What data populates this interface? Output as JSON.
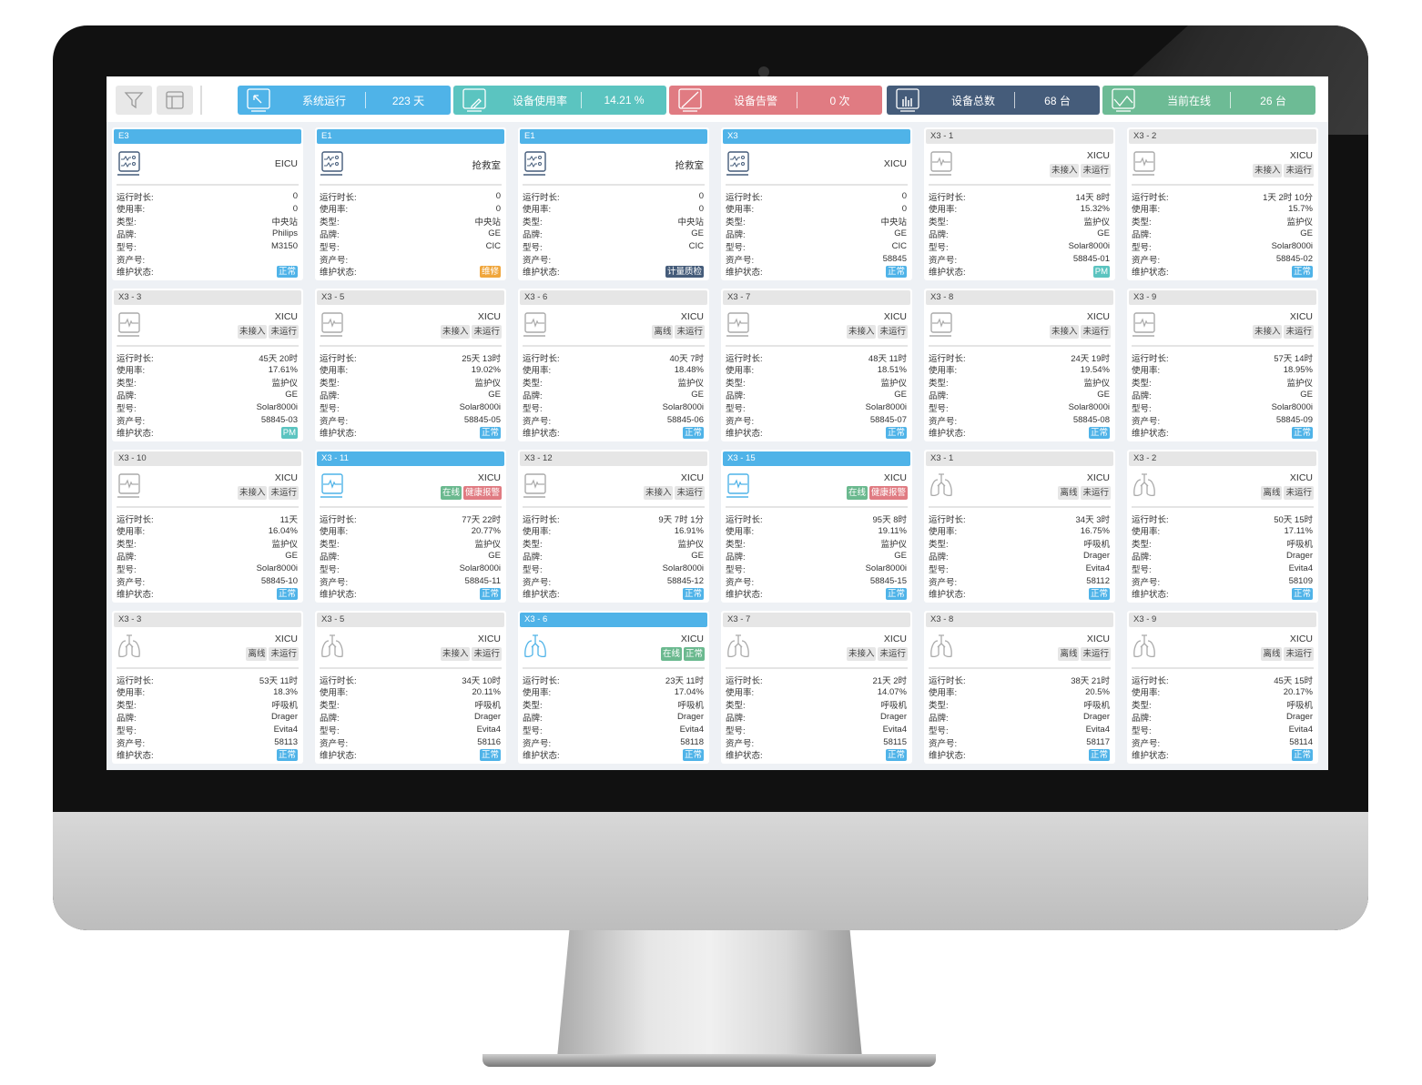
{
  "toolbar": {
    "filter_icon": "filter-icon",
    "layout_icon": "layout-icon"
  },
  "stats": [
    {
      "label": "系统运行",
      "value": "223 天",
      "color": "#4fb3e8",
      "icon": "cursor-screen-icon"
    },
    {
      "label": "设备使用率",
      "value": "14.21 %",
      "color": "#5bc4c0",
      "icon": "edit-screen-icon"
    },
    {
      "label": "设备告警",
      "value": "0 次",
      "color": "#e07b82",
      "icon": "alarm-screen-icon"
    },
    {
      "label": "设备总数",
      "value": "68 台",
      "color": "#455c7a",
      "icon": "bar-chart-screen-icon"
    },
    {
      "label": "当前在线",
      "value": "26 台",
      "color": "#6dbb95",
      "icon": "line-chart-screen-icon"
    }
  ],
  "field_labels": {
    "runtime": "运行时长:",
    "usage": "使用率:",
    "type": "类型:",
    "brand": "品牌:",
    "model": "型号:",
    "asset": "资产号:",
    "status": "维护状态:"
  },
  "colors": {
    "active": "#4fb3e8",
    "tag_gray": "#e6e6e6",
    "online": "#6bb98f",
    "alarm": "#e07b82",
    "normal": "#4fb3e8",
    "repair": "#f0a63c",
    "metrology": "#455c7a",
    "pm": "#5bc4c0"
  },
  "cards": [
    {
      "title": "E3",
      "active": true,
      "icon": "central-station",
      "location": "EICU",
      "tags": [],
      "runtime": "0",
      "usage": "0",
      "type": "中央站",
      "brand": "Philips",
      "model": "M3150",
      "asset": "",
      "status": "正常",
      "status_color": "normal"
    },
    {
      "title": "E1",
      "active": true,
      "icon": "central-station",
      "location": "抢救室",
      "tags": [],
      "runtime": "0",
      "usage": "0",
      "type": "中央站",
      "brand": "GE",
      "model": "CIC",
      "asset": "",
      "status": "维修",
      "status_color": "repair"
    },
    {
      "title": "E1",
      "active": true,
      "icon": "central-station",
      "location": "抢救室",
      "tags": [],
      "runtime": "0",
      "usage": "0",
      "type": "中央站",
      "brand": "GE",
      "model": "CIC",
      "asset": "",
      "status": "计量质检",
      "status_color": "metrology"
    },
    {
      "title": "X3",
      "active": true,
      "icon": "central-station",
      "location": "XICU",
      "tags": [],
      "runtime": "0",
      "usage": "0",
      "type": "中央站",
      "brand": "GE",
      "model": "CIC",
      "asset": "58845",
      "status": "正常",
      "status_color": "normal"
    },
    {
      "title": "X3 - 1",
      "active": false,
      "icon": "monitor",
      "location": "XICU",
      "tags": [
        {
          "label": "未接入",
          "color": "tag_gray"
        },
        {
          "label": "未运行",
          "color": "tag_gray"
        }
      ],
      "runtime": "14天 8时",
      "usage": "15.32%",
      "type": "监护仪",
      "brand": "GE",
      "model": "Solar8000i",
      "asset": "58845-01",
      "status": "PM",
      "status_color": "pm"
    },
    {
      "title": "X3 - 2",
      "active": false,
      "icon": "monitor",
      "location": "XICU",
      "tags": [
        {
          "label": "未接入",
          "color": "tag_gray"
        },
        {
          "label": "未运行",
          "color": "tag_gray"
        }
      ],
      "runtime": "1天 2时 10分",
      "usage": "15.7%",
      "type": "监护仪",
      "brand": "GE",
      "model": "Solar8000i",
      "asset": "58845-02",
      "status": "正常",
      "status_color": "normal"
    },
    {
      "title": "X3 - 3",
      "active": false,
      "icon": "monitor",
      "location": "XICU",
      "tags": [
        {
          "label": "未接入",
          "color": "tag_gray"
        },
        {
          "label": "未运行",
          "color": "tag_gray"
        }
      ],
      "runtime": "45天 20时",
      "usage": "17.61%",
      "type": "监护仪",
      "brand": "GE",
      "model": "Solar8000i",
      "asset": "58845-03",
      "status": "PM",
      "status_color": "pm"
    },
    {
      "title": "X3 - 5",
      "active": false,
      "icon": "monitor",
      "location": "XICU",
      "tags": [
        {
          "label": "未接入",
          "color": "tag_gray"
        },
        {
          "label": "未运行",
          "color": "tag_gray"
        }
      ],
      "runtime": "25天 13时",
      "usage": "19.02%",
      "type": "监护仪",
      "brand": "GE",
      "model": "Solar8000i",
      "asset": "58845-05",
      "status": "正常",
      "status_color": "normal"
    },
    {
      "title": "X3 - 6",
      "active": false,
      "icon": "monitor",
      "location": "XICU",
      "tags": [
        {
          "label": "离线",
          "color": "tag_gray"
        },
        {
          "label": "未运行",
          "color": "tag_gray"
        }
      ],
      "runtime": "40天 7时",
      "usage": "18.48%",
      "type": "监护仪",
      "brand": "GE",
      "model": "Solar8000i",
      "asset": "58845-06",
      "status": "正常",
      "status_color": "normal"
    },
    {
      "title": "X3 - 7",
      "active": false,
      "icon": "monitor",
      "location": "XICU",
      "tags": [
        {
          "label": "未接入",
          "color": "tag_gray"
        },
        {
          "label": "未运行",
          "color": "tag_gray"
        }
      ],
      "runtime": "48天 11时",
      "usage": "18.51%",
      "type": "监护仪",
      "brand": "GE",
      "model": "Solar8000i",
      "asset": "58845-07",
      "status": "正常",
      "status_color": "normal"
    },
    {
      "title": "X3 - 8",
      "active": false,
      "icon": "monitor",
      "location": "XICU",
      "tags": [
        {
          "label": "未接入",
          "color": "tag_gray"
        },
        {
          "label": "未运行",
          "color": "tag_gray"
        }
      ],
      "runtime": "24天 19时",
      "usage": "19.54%",
      "type": "监护仪",
      "brand": "GE",
      "model": "Solar8000i",
      "asset": "58845-08",
      "status": "正常",
      "status_color": "normal"
    },
    {
      "title": "X3 - 9",
      "active": false,
      "icon": "monitor",
      "location": "XICU",
      "tags": [
        {
          "label": "未接入",
          "color": "tag_gray"
        },
        {
          "label": "未运行",
          "color": "tag_gray"
        }
      ],
      "runtime": "57天 14时",
      "usage": "18.95%",
      "type": "监护仪",
      "brand": "GE",
      "model": "Solar8000i",
      "asset": "58845-09",
      "status": "正常",
      "status_color": "normal"
    },
    {
      "title": "X3 - 10",
      "active": false,
      "icon": "monitor",
      "location": "XICU",
      "tags": [
        {
          "label": "未接入",
          "color": "tag_gray"
        },
        {
          "label": "未运行",
          "color": "tag_gray"
        }
      ],
      "runtime": "11天",
      "usage": "16.04%",
      "type": "监护仪",
      "brand": "GE",
      "model": "Solar8000i",
      "asset": "58845-10",
      "status": "正常",
      "status_color": "normal"
    },
    {
      "title": "X3 - 11",
      "active": true,
      "icon": "monitor",
      "location": "XICU",
      "tags": [
        {
          "label": "在线",
          "color": "online"
        },
        {
          "label": "健康报警",
          "color": "alarm"
        }
      ],
      "runtime": "77天 22时",
      "usage": "20.77%",
      "type": "监护仪",
      "brand": "GE",
      "model": "Solar8000i",
      "asset": "58845-11",
      "status": "正常",
      "status_color": "normal"
    },
    {
      "title": "X3 - 12",
      "active": false,
      "icon": "monitor",
      "location": "XICU",
      "tags": [
        {
          "label": "未接入",
          "color": "tag_gray"
        },
        {
          "label": "未运行",
          "color": "tag_gray"
        }
      ],
      "runtime": "9天 7时 1分",
      "usage": "16.91%",
      "type": "监护仪",
      "brand": "GE",
      "model": "Solar8000i",
      "asset": "58845-12",
      "status": "正常",
      "status_color": "normal"
    },
    {
      "title": "X3 - 15",
      "active": true,
      "icon": "monitor",
      "location": "XICU",
      "tags": [
        {
          "label": "在线",
          "color": "online"
        },
        {
          "label": "健康报警",
          "color": "alarm"
        }
      ],
      "runtime": "95天 8时",
      "usage": "19.11%",
      "type": "监护仪",
      "brand": "GE",
      "model": "Solar8000i",
      "asset": "58845-15",
      "status": "正常",
      "status_color": "normal"
    },
    {
      "title": "X3 - 1",
      "active": false,
      "icon": "ventilator",
      "location": "XICU",
      "tags": [
        {
          "label": "离线",
          "color": "tag_gray"
        },
        {
          "label": "未运行",
          "color": "tag_gray"
        }
      ],
      "runtime": "34天 3时",
      "usage": "16.75%",
      "type": "呼吸机",
      "brand": "Drager",
      "model": "Evita4",
      "asset": "58112",
      "status": "正常",
      "status_color": "normal"
    },
    {
      "title": "X3 - 2",
      "active": false,
      "icon": "ventilator",
      "location": "XICU",
      "tags": [
        {
          "label": "离线",
          "color": "tag_gray"
        },
        {
          "label": "未运行",
          "color": "tag_gray"
        }
      ],
      "runtime": "50天 15时",
      "usage": "17.11%",
      "type": "呼吸机",
      "brand": "Drager",
      "model": "Evita4",
      "asset": "58109",
      "status": "正常",
      "status_color": "normal"
    },
    {
      "title": "X3 - 3",
      "active": false,
      "icon": "ventilator",
      "location": "XICU",
      "tags": [
        {
          "label": "离线",
          "color": "tag_gray"
        },
        {
          "label": "未运行",
          "color": "tag_gray"
        }
      ],
      "runtime": "53天 11时",
      "usage": "18.3%",
      "type": "呼吸机",
      "brand": "Drager",
      "model": "Evita4",
      "asset": "58113",
      "status": "正常",
      "status_color": "normal"
    },
    {
      "title": "X3 - 5",
      "active": false,
      "icon": "ventilator",
      "location": "XICU",
      "tags": [
        {
          "label": "未接入",
          "color": "tag_gray"
        },
        {
          "label": "未运行",
          "color": "tag_gray"
        }
      ],
      "runtime": "34天 10时",
      "usage": "20.11%",
      "type": "呼吸机",
      "brand": "Drager",
      "model": "Evita4",
      "asset": "58116",
      "status": "正常",
      "status_color": "normal"
    },
    {
      "title": "X3 - 6",
      "active": true,
      "icon": "ventilator",
      "location": "XICU",
      "tags": [
        {
          "label": "在线",
          "color": "online"
        },
        {
          "label": "正常",
          "color": "online"
        }
      ],
      "runtime": "23天 11时",
      "usage": "17.04%",
      "type": "呼吸机",
      "brand": "Drager",
      "model": "Evita4",
      "asset": "58118",
      "status": "正常",
      "status_color": "normal"
    },
    {
      "title": "X3 - 7",
      "active": false,
      "icon": "ventilator",
      "location": "XICU",
      "tags": [
        {
          "label": "未接入",
          "color": "tag_gray"
        },
        {
          "label": "未运行",
          "color": "tag_gray"
        }
      ],
      "runtime": "21天 2时",
      "usage": "14.07%",
      "type": "呼吸机",
      "brand": "Drager",
      "model": "Evita4",
      "asset": "58115",
      "status": "正常",
      "status_color": "normal"
    },
    {
      "title": "X3 - 8",
      "active": false,
      "icon": "ventilator",
      "location": "XICU",
      "tags": [
        {
          "label": "离线",
          "color": "tag_gray"
        },
        {
          "label": "未运行",
          "color": "tag_gray"
        }
      ],
      "runtime": "38天 21时",
      "usage": "20.5%",
      "type": "呼吸机",
      "brand": "Drager",
      "model": "Evita4",
      "asset": "58117",
      "status": "正常",
      "status_color": "normal"
    },
    {
      "title": "X3 - 9",
      "active": false,
      "icon": "ventilator",
      "location": "XICU",
      "tags": [
        {
          "label": "离线",
          "color": "tag_gray"
        },
        {
          "label": "未运行",
          "color": "tag_gray"
        }
      ],
      "runtime": "45天 15时",
      "usage": "20.17%",
      "type": "呼吸机",
      "brand": "Drager",
      "model": "Evita4",
      "asset": "58114",
      "status": "正常",
      "status_color": "normal"
    }
  ]
}
